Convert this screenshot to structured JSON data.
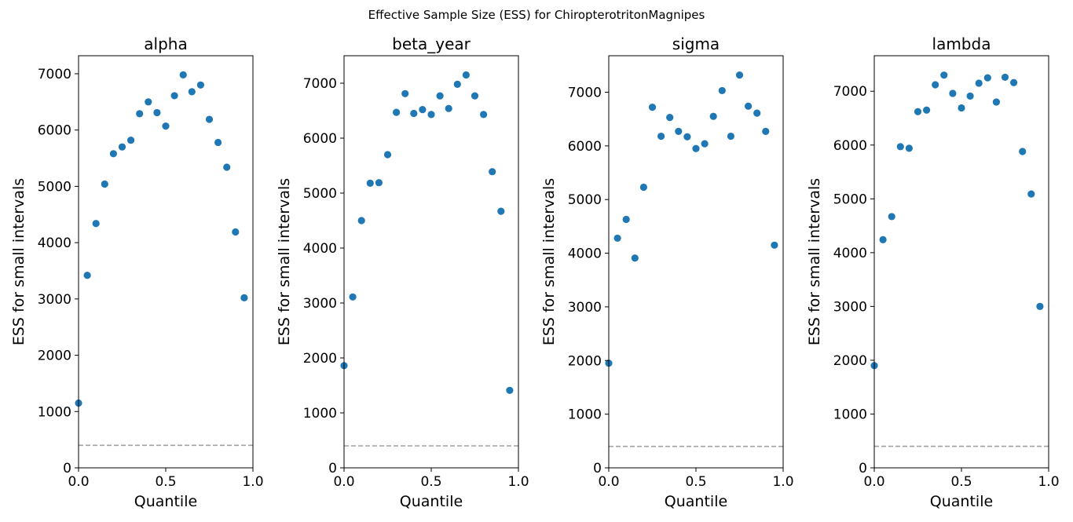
{
  "figure": {
    "suptitle": "Effective Sample Size (ESS) for ChiropterotritonMagnipes"
  },
  "chart_data": [
    {
      "type": "scatter",
      "title": "alpha",
      "xlabel": "Quantile",
      "ylabel": "ESS for small intervals",
      "xlim": [
        0,
        1
      ],
      "ylim": [
        0,
        7320
      ],
      "xticks": [
        "0.0",
        "0.5",
        "1.0"
      ],
      "yticks": [
        "0",
        "1000",
        "2000",
        "3000",
        "4000",
        "5000",
        "6000",
        "7000"
      ],
      "x": [
        0.0,
        0.05,
        0.1,
        0.15,
        0.2,
        0.25,
        0.3,
        0.35,
        0.4,
        0.45,
        0.5,
        0.55,
        0.6,
        0.65,
        0.7,
        0.75,
        0.8,
        0.85,
        0.9,
        0.95
      ],
      "y": [
        1150,
        3420,
        4340,
        5040,
        5580,
        5700,
        5820,
        6290,
        6500,
        6310,
        6070,
        6610,
        6980,
        6680,
        6800,
        6190,
        5780,
        5340,
        4190,
        3020
      ],
      "reference_line": 400,
      "point_color": "#1f77b4",
      "reference_color": "#a0a0a0"
    },
    {
      "type": "scatter",
      "title": "beta_year",
      "xlabel": "Quantile",
      "ylabel": "ESS for small intervals",
      "xlim": [
        0,
        1
      ],
      "ylim": [
        0,
        7500
      ],
      "xticks": [
        "0.0",
        "0.5",
        "1.0"
      ],
      "yticks": [
        "0",
        "1000",
        "2000",
        "3000",
        "4000",
        "5000",
        "6000",
        "7000"
      ],
      "x": [
        0.0,
        0.05,
        0.1,
        0.15,
        0.2,
        0.25,
        0.3,
        0.35,
        0.4,
        0.45,
        0.5,
        0.55,
        0.6,
        0.65,
        0.7,
        0.75,
        0.8,
        0.85,
        0.9,
        0.95
      ],
      "y": [
        1860,
        3110,
        4500,
        5180,
        5190,
        5700,
        6470,
        6810,
        6450,
        6520,
        6430,
        6770,
        6540,
        6980,
        7150,
        6770,
        6430,
        5390,
        4670,
        1410
      ],
      "reference_line": 400,
      "point_color": "#1f77b4",
      "reference_color": "#a0a0a0"
    },
    {
      "type": "scatter",
      "title": "sigma",
      "xlabel": "Quantile",
      "ylabel": "ESS for small intervals",
      "xlim": [
        0,
        1
      ],
      "ylim": [
        0,
        7680
      ],
      "xticks": [
        "0.0",
        "0.5",
        "1.0"
      ],
      "yticks": [
        "0",
        "1000",
        "2000",
        "3000",
        "4000",
        "5000",
        "6000",
        "7000"
      ],
      "x": [
        0.0,
        0.05,
        0.1,
        0.15,
        0.2,
        0.25,
        0.3,
        0.35,
        0.4,
        0.45,
        0.5,
        0.55,
        0.6,
        0.65,
        0.7,
        0.75,
        0.8,
        0.85,
        0.9,
        0.95
      ],
      "y": [
        1950,
        4280,
        4630,
        3910,
        5230,
        6720,
        6180,
        6530,
        6270,
        6170,
        5950,
        6040,
        6550,
        7030,
        6180,
        7320,
        6740,
        6610,
        6270,
        4150
      ],
      "reference_line": 400,
      "point_color": "#1f77b4",
      "reference_color": "#a0a0a0"
    },
    {
      "type": "scatter",
      "title": "lambda",
      "xlabel": "Quantile",
      "ylabel": "ESS for small intervals",
      "xlim": [
        0,
        1
      ],
      "ylim": [
        0,
        7660
      ],
      "xticks": [
        "0.0",
        "0.5",
        "1.0"
      ],
      "yticks": [
        "0",
        "1000",
        "2000",
        "3000",
        "4000",
        "5000",
        "6000",
        "7000"
      ],
      "x": [
        0.0,
        0.05,
        0.1,
        0.15,
        0.2,
        0.25,
        0.3,
        0.35,
        0.4,
        0.45,
        0.5,
        0.55,
        0.6,
        0.65,
        0.7,
        0.75,
        0.8,
        0.85,
        0.9,
        0.95
      ],
      "y": [
        1900,
        4240,
        4670,
        5970,
        5940,
        6620,
        6650,
        7120,
        7300,
        6960,
        6690,
        6910,
        7150,
        7250,
        6800,
        7260,
        7160,
        5880,
        5090,
        3000
      ],
      "reference_line": 400,
      "point_color": "#1f77b4",
      "reference_color": "#a0a0a0"
    }
  ]
}
